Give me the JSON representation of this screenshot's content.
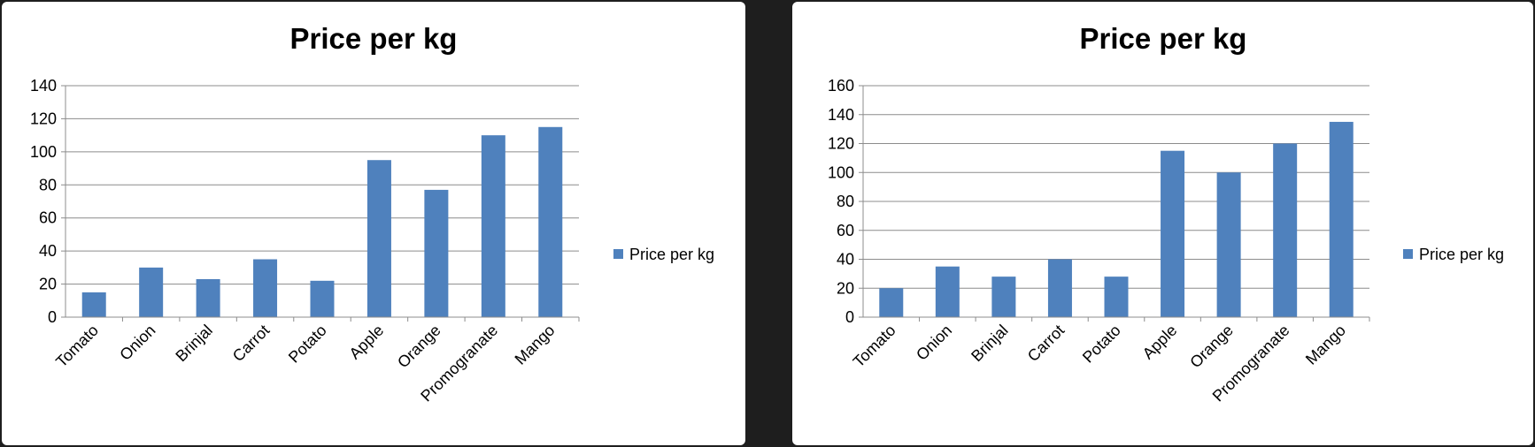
{
  "chart_data": [
    {
      "type": "bar",
      "title": "Price per kg",
      "categories": [
        "Tomato",
        "Onion",
        "Brinjal",
        "Carrot",
        "Potato",
        "Apple",
        "Orange",
        "Promogranate",
        "Mango"
      ],
      "series": [
        {
          "name": "Price per kg",
          "values": [
            15,
            30,
            23,
            35,
            22,
            95,
            77,
            110,
            115
          ],
          "color": "#4f81bd"
        }
      ],
      "ylim": [
        0,
        140
      ],
      "yticks": [
        0,
        20,
        40,
        60,
        80,
        100,
        120,
        140
      ],
      "grid": true,
      "legend": "right"
    },
    {
      "type": "bar",
      "title": "Price per kg",
      "categories": [
        "Tomato",
        "Onion",
        "Brinjal",
        "Carrot",
        "Potato",
        "Apple",
        "Orange",
        "Promogranate",
        "Mango"
      ],
      "series": [
        {
          "name": "Price per kg",
          "values": [
            20,
            35,
            28,
            40,
            28,
            115,
            100,
            120,
            135
          ],
          "color": "#4f81bd"
        }
      ],
      "ylim": [
        0,
        160
      ],
      "yticks": [
        0,
        20,
        40,
        60,
        80,
        100,
        120,
        140,
        160
      ],
      "grid": true,
      "legend": "right"
    }
  ]
}
